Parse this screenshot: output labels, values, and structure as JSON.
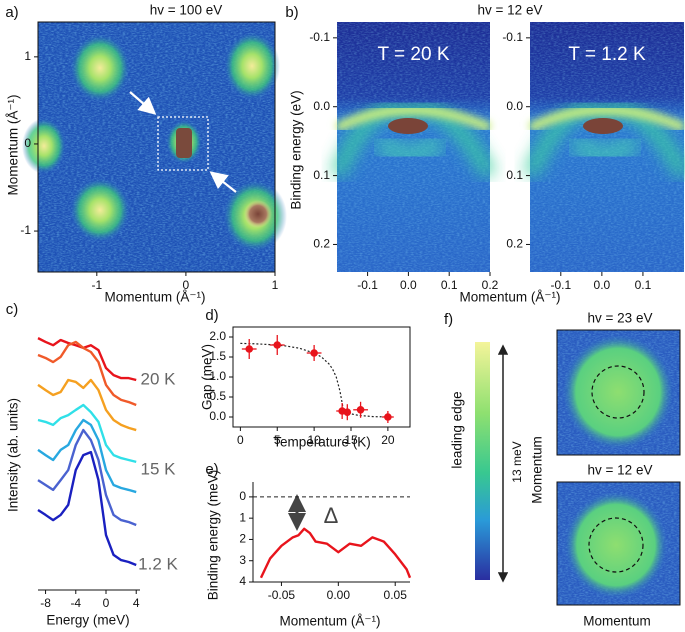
{
  "chart_data": [
    {
      "type": "heatmap",
      "panel_label": "a)",
      "title": "hv = 100 eV",
      "x_label": "Momentum (Å⁻¹)",
      "y_label": "Momentum (Å⁻¹)",
      "xlim": [
        -1.66,
        1.0
      ],
      "ylim": [
        -1.47,
        1.4
      ],
      "xticks": [
        -1,
        0,
        1
      ],
      "yticks": [
        -1,
        0,
        1
      ]
    },
    {
      "type": "heatmap",
      "panel_label": "b)",
      "title": "hv = 12 eV",
      "x_label": "Momentum (Å⁻¹)",
      "y_label": "Binding energy (eV)",
      "xlim": [
        -0.175,
        0.2
      ],
      "ylim": [
        0.24,
        -0.123
      ],
      "yticks": [
        -0.1,
        {
          "value": 0,
          "label": "0.0"
        },
        0.1,
        0.2
      ],
      "panels": [
        {
          "annotation": "T = 20 K",
          "xticks": [
            -0.1,
            {
              "value": 0,
              "label": "0.0"
            },
            0.1,
            0.2
          ]
        },
        {
          "annotation": "T = 1.2 K",
          "xticks": [
            -0.1,
            {
              "value": 0,
              "label": "0.0"
            },
            0.1
          ]
        }
      ]
    },
    {
      "type": "line",
      "panel_label": "c)",
      "x_label": "Energy (meV)",
      "y_label": "Intensity (ab. units)",
      "xlim": [
        -9,
        4.5
      ],
      "ylim": [
        0,
        10
      ],
      "xticks": [
        -8,
        -4,
        0,
        4
      ],
      "annotations": [
        "20 K",
        "15 K",
        "1.2 K"
      ],
      "x": [
        -9,
        -8,
        -7,
        -6,
        -5,
        -4,
        -3,
        -2,
        -1,
        0,
        1,
        2,
        3,
        4
      ],
      "series": [
        {
          "color": "#e8141c",
          "values": [
            9.26,
            9.12,
            9.0,
            9.19,
            9.08,
            9.0,
            8.9,
            9.0,
            8.82,
            8.16,
            7.9,
            7.79,
            7.79,
            7.72
          ]
        },
        {
          "color": "#f05a2a",
          "values": [
            8.64,
            8.53,
            8.38,
            8.57,
            9.0,
            9.12,
            8.9,
            8.75,
            8.38,
            7.54,
            7.17,
            6.99,
            6.91,
            6.8
          ]
        },
        {
          "color": "#f5a020",
          "values": [
            7.54,
            7.35,
            7.17,
            7.28,
            7.72,
            7.65,
            7.43,
            7.72,
            7.35,
            6.62,
            6.25,
            6.07,
            5.96,
            5.88
          ]
        },
        {
          "color": "#30e0e8",
          "values": [
            6.25,
            6.18,
            6.07,
            6.32,
            6.43,
            6.62,
            6.8,
            6.54,
            6.18,
            5.33,
            4.96,
            4.85,
            4.78,
            4.71
          ]
        },
        {
          "color": "#28a8e0",
          "values": [
            5.15,
            4.96,
            4.78,
            5.15,
            5.33,
            5.88,
            6.25,
            6.07,
            5.51,
            4.41,
            3.86,
            3.75,
            3.68,
            3.6
          ]
        },
        {
          "color": "#4a62d0",
          "values": [
            4.04,
            3.86,
            3.68,
            4.04,
            4.41,
            5.33,
            5.88,
            5.51,
            4.78,
            3.49,
            2.76,
            2.57,
            2.5,
            2.39
          ]
        },
        {
          "color": "#1a20c0",
          "values": [
            2.94,
            2.76,
            2.57,
            2.76,
            3.13,
            4.41,
            4.96,
            5.07,
            4.04,
            2.02,
            1.29,
            1.1,
            1.03,
            0.92
          ]
        }
      ]
    },
    {
      "type": "scatter",
      "panel_label": "d)",
      "x_label": "Temperature (K)",
      "y_label": "Gap (meV)",
      "xlim": [
        -1,
        23
      ],
      "ylim": [
        -0.25,
        2.25
      ],
      "xticks": [
        0,
        5,
        10,
        15,
        20
      ],
      "yticks": [
        {
          "value": 0,
          "label": "0.0"
        },
        0.5,
        {
          "value": 1,
          "label": "1.0"
        },
        1.5,
        {
          "value": 2,
          "label": "2.0"
        }
      ],
      "color": "#e8141c",
      "x": [
        1.2,
        5,
        10,
        13.8,
        14.5,
        16.3,
        20
      ],
      "values": [
        1.7,
        1.8,
        1.6,
        0.15,
        0.12,
        0.18,
        0.0
      ],
      "xerr": [
        1,
        1,
        1,
        0.8,
        0,
        1,
        0.8
      ],
      "yerr": [
        0.25,
        0.25,
        0.2,
        0.2,
        0.2,
        0.2,
        0.15
      ],
      "fit": {
        "x": [
          0,
          2,
          4,
          6,
          8,
          10,
          11,
          12,
          12.5,
          13,
          13.5,
          14,
          15,
          16,
          18,
          20
        ],
        "values": [
          1.84,
          1.83,
          1.81,
          1.78,
          1.72,
          1.6,
          1.5,
          1.33,
          1.2,
          1.0,
          0.65,
          0.15,
          0.08,
          0.04,
          0.01,
          0
        ]
      }
    },
    {
      "type": "line",
      "panel_label": "e)",
      "x_label": "Momentum (Å⁻¹)",
      "y_label": "Binding energy (meV)",
      "annotation": "Δ",
      "color": "#e8141c",
      "xlim": [
        -0.075,
        0.063
      ],
      "ylim": [
        4,
        -0.7
      ],
      "reference_y": 0,
      "xticks": [
        -0.05,
        {
          "value": 0,
          "label": "0.00"
        },
        0.05
      ],
      "yticks": [
        0,
        1,
        2,
        3,
        4
      ],
      "x": [
        -0.068,
        -0.06,
        -0.05,
        -0.04,
        -0.035,
        -0.03,
        -0.025,
        -0.02,
        -0.01,
        0,
        0.01,
        0.02,
        0.03,
        0.04,
        0.05,
        0.06,
        0.063
      ],
      "values": [
        3.8,
        2.9,
        2.3,
        1.9,
        1.8,
        1.5,
        1.7,
        2.1,
        2.2,
        2.6,
        2.2,
        2.3,
        1.9,
        2.1,
        2.7,
        3.4,
        3.8
      ]
    },
    {
      "type": "image",
      "panel_label": "f)",
      "colorbar_label": "leading edge",
      "colorbar_range_label": "13 meV",
      "titles": [
        "hv = 23 eV",
        "hv = 12 eV"
      ],
      "x_label": "Momentum",
      "y_label": "Momentum"
    }
  ]
}
